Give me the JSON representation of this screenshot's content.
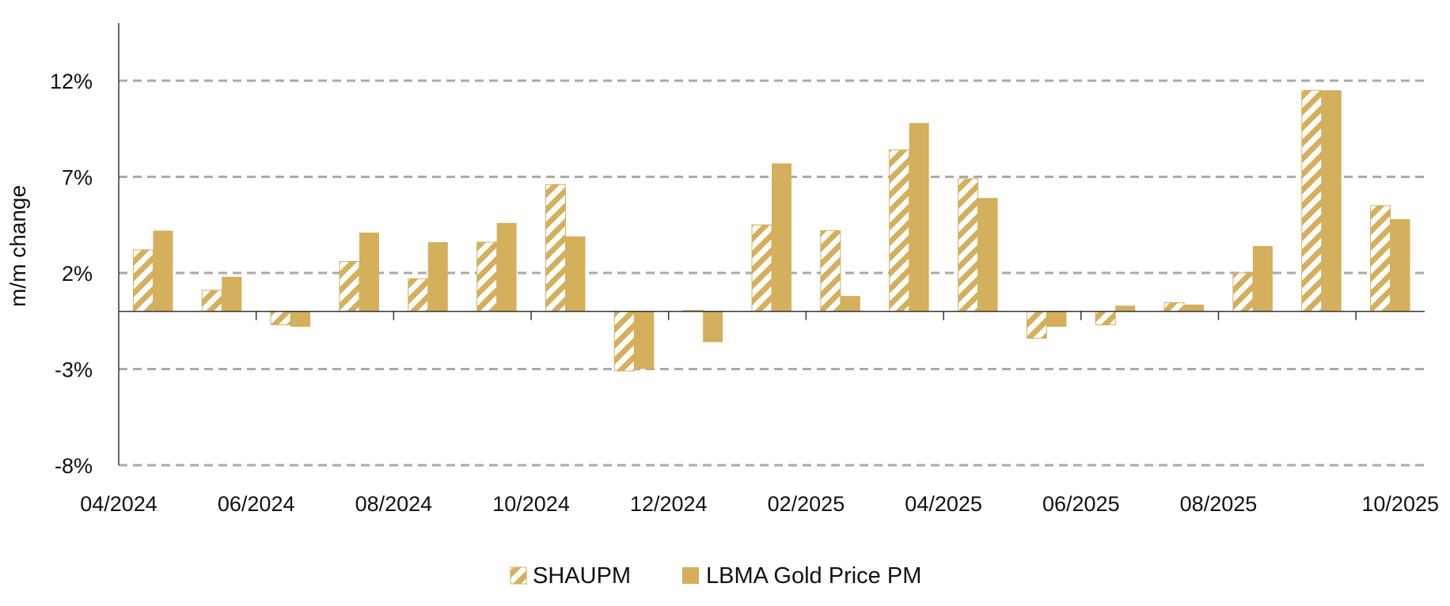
{
  "chart_data": {
    "type": "bar",
    "title": "",
    "xlabel": "",
    "ylabel": "m/m change",
    "ylim": [
      -8,
      15
    ],
    "yticks": [
      12,
      7,
      2,
      -3,
      -8
    ],
    "ytick_labels": [
      "12%",
      "7%",
      "2%",
      "-3%",
      "-8%"
    ],
    "grid": true,
    "legend_position": "bottom",
    "categories": [
      "04/2024",
      "05/2024",
      "06/2024",
      "07/2024",
      "08/2024",
      "09/2024",
      "10/2024",
      "11/2024",
      "12/2024",
      "01/2025",
      "02/2025",
      "03/2025",
      "04/2025",
      "05/2025",
      "06/2025",
      "07/2025",
      "08/2025",
      "09/2025",
      "10/2025"
    ],
    "xtick_labels": [
      "04/2024",
      "06/2024",
      "08/2024",
      "10/2024",
      "12/2024",
      "02/2025",
      "04/2025",
      "06/2025",
      "08/2025",
      "10/2025"
    ],
    "series": [
      {
        "name": "SHAUPM",
        "pattern": "hatched",
        "values": [
          3.2,
          1.1,
          -0.7,
          2.6,
          1.7,
          3.6,
          6.6,
          -3.1,
          0.05,
          4.5,
          4.2,
          8.4,
          6.9,
          -1.4,
          -0.7,
          0.45,
          2.0,
          11.5,
          5.5
        ]
      },
      {
        "name": "LBMA Gold Price PM",
        "pattern": "solid",
        "values": [
          4.2,
          1.8,
          -0.8,
          4.1,
          3.6,
          4.6,
          3.9,
          -3.0,
          -1.6,
          7.7,
          0.8,
          9.8,
          5.9,
          -0.8,
          0.3,
          0.35,
          3.4,
          11.5,
          4.8
        ]
      }
    ],
    "colors": {
      "gold": "#D4AF5C",
      "grid": "#AAAAAA",
      "axis": "#333333"
    }
  }
}
